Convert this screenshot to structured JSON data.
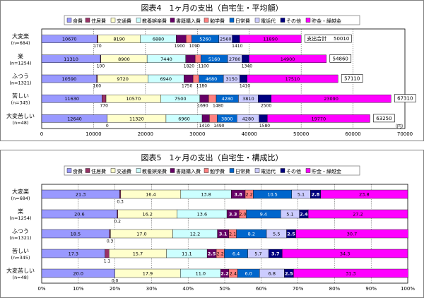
{
  "chart_data": [
    {
      "type": "bar",
      "orientation": "horizontal",
      "stacked": true,
      "title": "図表4　1ヶ月の支出（自宅生・平均額）",
      "categories": [
        "大変楽\n(n=684)",
        "楽\n(n=1254)",
        "ふつう\n(n=1321)",
        "苦しい\n(n=345)",
        "大変苦しい\n(n=48)"
      ],
      "series": [
        {
          "name": "食費",
          "values": [
            10670,
            11310,
            10590,
            11630,
            12640
          ]
        },
        {
          "name": "住居費",
          "values": [
            170,
            100,
            160,
            770,
            0
          ]
        },
        {
          "name": "交通費",
          "values": [
            8190,
            8900,
            9720,
            10570,
            11320
          ]
        },
        {
          "name": "教養娯楽費",
          "values": [
            6880,
            7440,
            6940,
            7500,
            6960
          ]
        },
        {
          "name": "書籍購入費",
          "values": [
            1900,
            1820,
            1750,
            1690,
            1410
          ]
        },
        {
          "name": "勉学費",
          "values": [
            1090,
            1100,
            1180,
            1480,
            1490
          ]
        },
        {
          "name": "日常費",
          "values": [
            5260,
            5160,
            4680,
            4280,
            3800
          ]
        },
        {
          "name": "電話代",
          "values": [
            2560,
            2780,
            3150,
            3810,
            4280
          ]
        },
        {
          "name": "その他",
          "values": [
            1410,
            1340,
            1410,
            2500,
            1580
          ]
        },
        {
          "name": "貯金・繰越金",
          "values": [
            11890,
            14900,
            17510,
            23090,
            19770
          ]
        }
      ],
      "totals": [
        50010,
        54860,
        57110,
        67310,
        63250
      ],
      "total_label": "支出合計",
      "xlim": [
        0,
        70000
      ],
      "xticks": [
        0,
        10000,
        20000,
        30000,
        40000,
        50000,
        60000,
        70000
      ],
      "unit": "（円）",
      "legend": "top",
      "grid": true
    },
    {
      "type": "bar",
      "orientation": "horizontal",
      "stacked": true,
      "title": "図表5　1ヶ月の支出（自宅生・構成比）",
      "categories": [
        "大変楽\n(n=684)",
        "楽\n(n=1254)",
        "ふつう\n(n=1321)",
        "苦しい\n(n=345)",
        "大変苦しい\n(n=48)"
      ],
      "series": [
        {
          "name": "食費",
          "values": [
            21.3,
            20.6,
            18.5,
            17.3,
            20.0
          ]
        },
        {
          "name": "住居費",
          "values": [
            0.3,
            0.2,
            0.3,
            1.1,
            0.0
          ]
        },
        {
          "name": "交通費",
          "values": [
            16.4,
            16.2,
            17.0,
            15.7,
            17.9
          ]
        },
        {
          "name": "教養娯楽費",
          "values": [
            13.8,
            13.6,
            12.2,
            11.1,
            11.0
          ]
        },
        {
          "name": "書籍購入費",
          "values": [
            3.8,
            3.3,
            3.1,
            2.5,
            2.2
          ]
        },
        {
          "name": "勉学費",
          "values": [
            2.2,
            2.0,
            2.1,
            2.2,
            2.4
          ]
        },
        {
          "name": "日常費",
          "values": [
            10.5,
            9.4,
            8.2,
            6.4,
            6.0
          ]
        },
        {
          "name": "電話代",
          "values": [
            5.1,
            5.1,
            5.5,
            5.7,
            6.8
          ]
        },
        {
          "name": "その他",
          "values": [
            2.8,
            2.4,
            2.5,
            3.7,
            2.5
          ]
        },
        {
          "name": "貯金・繰越金",
          "values": [
            23.8,
            27.2,
            30.7,
            34.3,
            31.3
          ]
        }
      ],
      "xlim": [
        0,
        100
      ],
      "xticks": [
        "0%",
        "10%",
        "20%",
        "30%",
        "40%",
        "50%",
        "60%",
        "70%",
        "80%",
        "90%",
        "100%"
      ],
      "legend": "top",
      "grid": true
    }
  ],
  "colors": [
    "#9999ff",
    "#993366",
    "#ffffcc",
    "#ccffff",
    "#660066",
    "#ff8080",
    "#0066cc",
    "#ccccff",
    "#000080",
    "#ff00ff"
  ]
}
